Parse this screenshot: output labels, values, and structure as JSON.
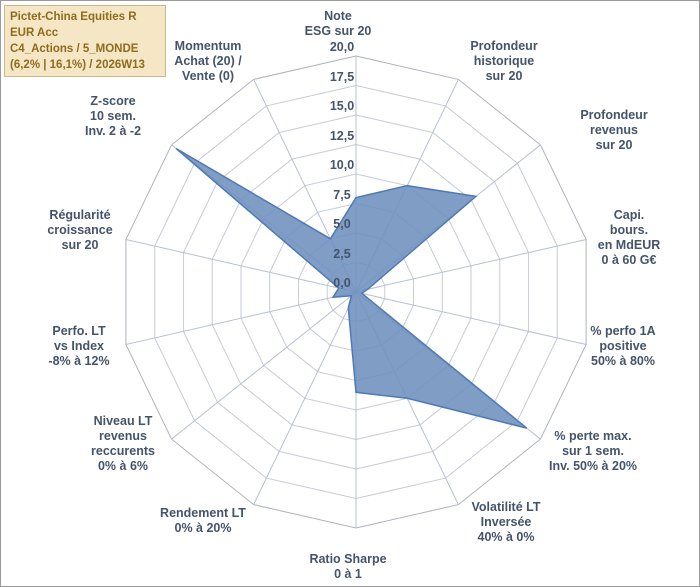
{
  "window": {
    "background": "#ffffff",
    "border_color": "#9a9a9a"
  },
  "title_box": {
    "text": "Pictet-China Equities R EUR Acc\nC4_Actions / 5_MONDE\n(6,2% | 16,1%) / 2026W13",
    "bg_color": "#F5E7C6",
    "text_color": "#8F6B1D"
  },
  "chart_data": {
    "type": "radar",
    "min": 0,
    "max": 20,
    "ring_step": 2.5,
    "grid": true,
    "legend_position": "none",
    "tick_labels": [
      "20,0",
      "17,5",
      "15,0",
      "12,5",
      "10,0",
      "7,5",
      "5,0",
      "2,5",
      "0,0"
    ],
    "colors": {
      "fill": "rgba(110,143,190,0.88)",
      "stroke": "#4f7ab5",
      "ring": "#c6cbd5",
      "ring_outer": "#adb2bc",
      "spoke": "#b7c0d4",
      "label": "#44546A"
    },
    "series": [
      {
        "name": "Pictet-China Equities R EUR Acc"
      }
    ],
    "axes": [
      {
        "label": "Note\nESG sur 20",
        "value": 8
      },
      {
        "label": "Profondeur\nhistorique\nsur 20",
        "value": 10
      },
      {
        "label": "Profondeur\nrevenus\nsur 20",
        "value": 13
      },
      {
        "label": "Capi. bours.\nen MdEUR\n0 à 60 G€",
        "value": 1
      },
      {
        "label": "% perfo 1A\npositive\n50% à 80%",
        "value": 0.5
      },
      {
        "label": "% perte max.\nsur 1 sem.\nInv. 50% à 20%",
        "value": 18.5
      },
      {
        "label": "Volatilité LT\nInversée\n40% à 0%",
        "value": 10
      },
      {
        "label": "Ratio Sharpe\n0 à 1",
        "value": 8.5
      },
      {
        "label": "Rendement LT\n0% à 20%",
        "value": 1.5
      },
      {
        "label": "Niveau LT\nrevenus\nreccurents\n0% à 6%",
        "value": 0.5
      },
      {
        "label": "Perfo. LT\nvs Index\n-8% à 12%",
        "value": 2
      },
      {
        "label": "Régularité\ncroissance\nsur 20",
        "value": 1.5
      },
      {
        "label": "Z-score\n10 sem.\nInv. 2 à -2",
        "value": 19.5
      },
      {
        "label": "Momentum\nAchat (20) /\nVente (0)",
        "value": 5
      }
    ]
  }
}
